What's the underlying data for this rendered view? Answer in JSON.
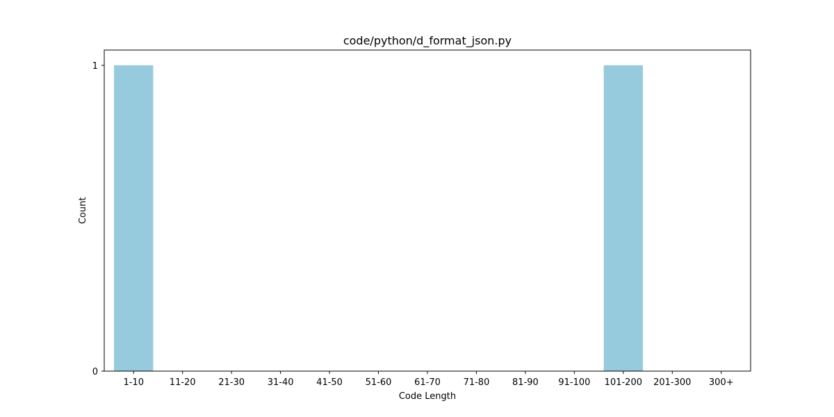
{
  "chart_data": {
    "type": "bar",
    "title": "code/python/d_format_json.py",
    "xlabel": "Code Length",
    "ylabel": "Count",
    "categories": [
      "1-10",
      "11-20",
      "21-30",
      "31-40",
      "41-50",
      "51-60",
      "61-70",
      "71-80",
      "81-90",
      "91-100",
      "101-200",
      "201-300",
      "300+"
    ],
    "values": [
      1,
      0,
      0,
      0,
      0,
      0,
      0,
      0,
      0,
      0,
      1,
      0,
      0
    ],
    "ylim": [
      0,
      1.05
    ],
    "yticks": [
      0,
      1
    ],
    "bar_color": "#96cadd",
    "grid": false,
    "legend": "none"
  }
}
